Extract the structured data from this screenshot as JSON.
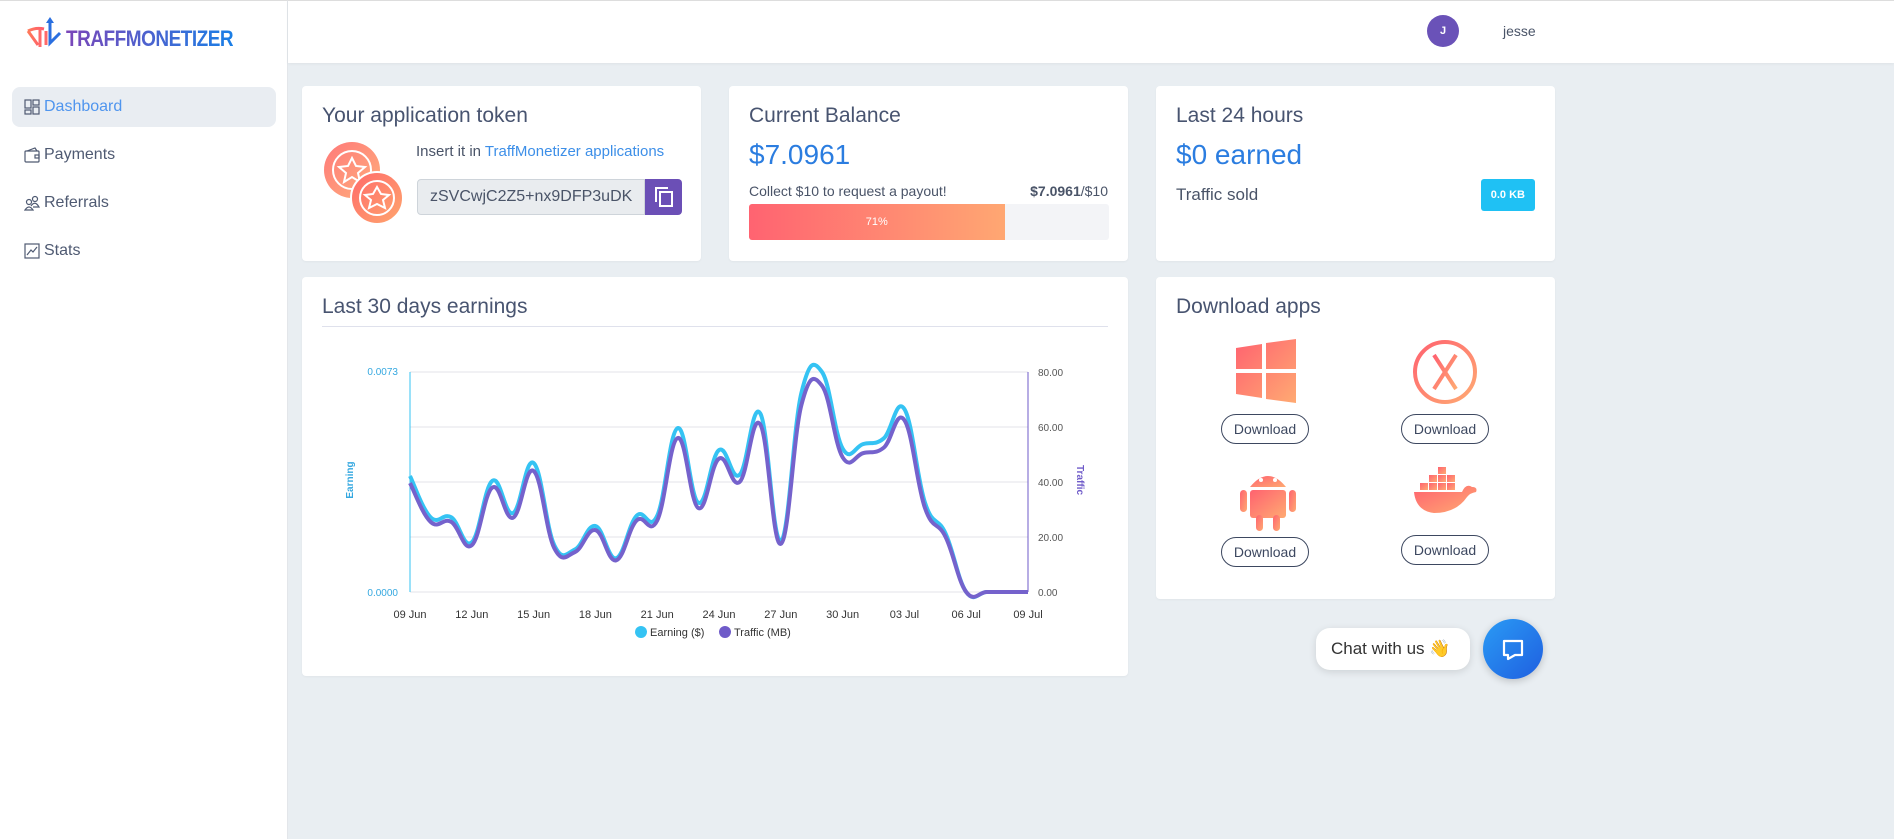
{
  "brand": {
    "name": "TRAFFMONETIZER"
  },
  "sidebar": {
    "items": [
      {
        "label": "Dashboard",
        "icon": "dashboard-icon",
        "active": true
      },
      {
        "label": "Payments",
        "icon": "wallet-icon"
      },
      {
        "label": "Referrals",
        "icon": "users-icon"
      },
      {
        "label": "Stats",
        "icon": "chart-icon"
      }
    ]
  },
  "user": {
    "initial": "J",
    "name": "jesse"
  },
  "token_card": {
    "title": "Your application token",
    "insert_prefix": "Insert it in ",
    "insert_link": "TraffMonetizer applications",
    "token": "zSVCwjC2Z5+nx9DFP3uDK"
  },
  "balance_card": {
    "title": "Current Balance",
    "amount": "$7.0961",
    "collect_text": "Collect $10 to request a payout!",
    "progress_current": "$7.0961",
    "progress_target": "/$10",
    "progress_label": "71%",
    "progress_percent": 71
  },
  "last24": {
    "title": "Last 24 hours",
    "earned": "$0 earned",
    "traffic_label": "Traffic sold",
    "traffic_value": "0.0 KB"
  },
  "chart_card": {
    "title": "Last 30 days earnings"
  },
  "downloads": {
    "title": "Download apps",
    "apps": [
      {
        "icon": "windows-icon",
        "label": "Download"
      },
      {
        "icon": "macos-x-icon",
        "label": "Download"
      },
      {
        "icon": "android-icon",
        "label": "Download"
      },
      {
        "icon": "docker-icon",
        "label": "Download"
      }
    ]
  },
  "chat": {
    "label": "Chat with us 👋"
  },
  "colors": {
    "accent": "#2b7de0",
    "earning": "#35c3f3",
    "traffic": "#6f5bc9"
  },
  "chart_data": {
    "type": "line",
    "x": [
      "09 Jun",
      "10 Jun",
      "11 Jun",
      "12 Jun",
      "13 Jun",
      "14 Jun",
      "15 Jun",
      "16 Jun",
      "17 Jun",
      "18 Jun",
      "19 Jun",
      "20 Jun",
      "21 Jun",
      "22 Jun",
      "23 Jun",
      "24 Jun",
      "25 Jun",
      "26 Jun",
      "27 Jun",
      "28 Jun",
      "29 Jun",
      "30 Jun",
      "01 Jul",
      "02 Jul",
      "03 Jul",
      "04 Jul",
      "05 Jul",
      "06 Jul",
      "07 Jul",
      "08 Jul",
      "09 Jul"
    ],
    "xticks": [
      "09 Jun",
      "12 Jun",
      "15 Jun",
      "18 Jun",
      "21 Jun",
      "24 Jun",
      "27 Jun",
      "30 Jun",
      "03 Jul",
      "06 Jul",
      "09 Jul"
    ],
    "series": [
      {
        "name": "Earning ($)",
        "axis": "left",
        "values": [
          0.00385,
          0.00248,
          0.00248,
          0.00165,
          0.00369,
          0.00262,
          0.00428,
          0.00156,
          0.00141,
          0.00219,
          0.00112,
          0.00253,
          0.00253,
          0.00544,
          0.00296,
          0.00471,
          0.00389,
          0.00593,
          0.0017,
          0.00661,
          0.0073,
          0.00476,
          0.00491,
          0.0051,
          0.00607,
          0.00296,
          0.00194,
          0,
          0,
          0,
          0
        ]
      },
      {
        "name": "Traffic (MB)",
        "axis": "right",
        "values": [
          39.6,
          25.5,
          25.5,
          17,
          38,
          27,
          44,
          16,
          14.5,
          22.5,
          11.5,
          26,
          26,
          56,
          30.5,
          48.5,
          40,
          61,
          17.5,
          68,
          75,
          49,
          50.5,
          52.5,
          62.5,
          30.5,
          20,
          0,
          0,
          0,
          0
        ]
      }
    ],
    "left_axis": {
      "label": "Earning",
      "ticks": [
        "0.0000",
        "0.0073"
      ],
      "range": [
        0,
        0.0073
      ]
    },
    "right_axis": {
      "label": "Traffic",
      "ticks": [
        "0.00",
        "20.00",
        "40.00",
        "60.00",
        "80.00"
      ],
      "range": [
        0,
        80
      ]
    },
    "grid": true,
    "legend": "bottom"
  }
}
